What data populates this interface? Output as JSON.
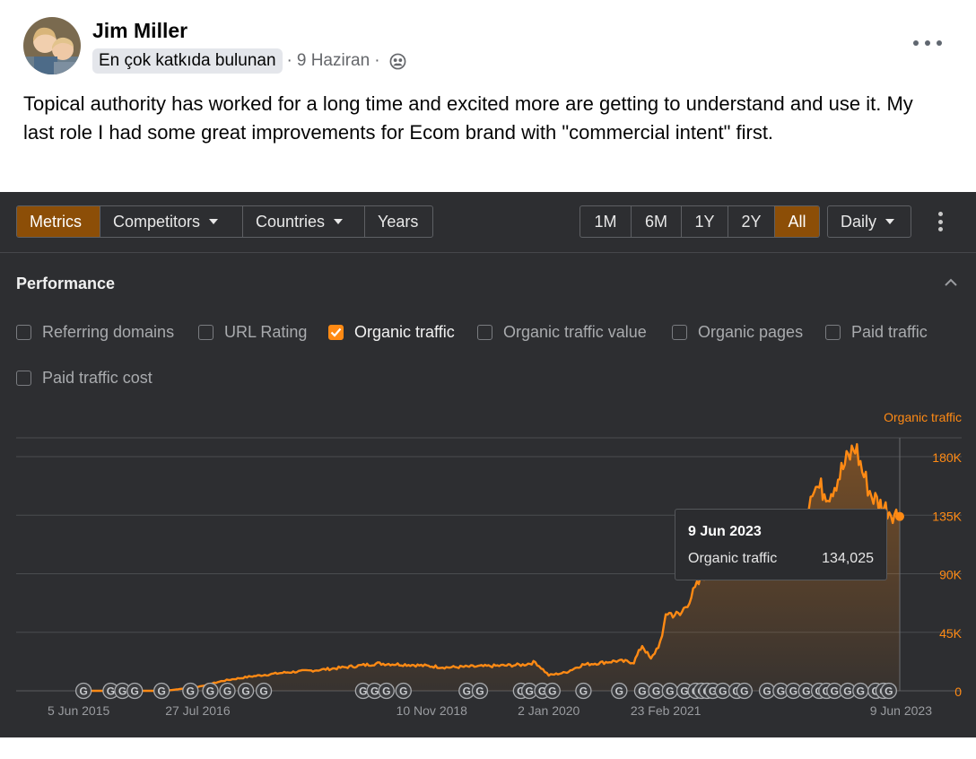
{
  "post": {
    "author": "Jim Miller",
    "badge": "En çok katkıda bulunan",
    "date": "9 Haziran",
    "privacy_icon": "friends-icon",
    "text": "Topical authority has worked for a long time and excited more are getting to understand and use it. My last role I had some great improvements for Ecom brand with \"commercial intent\" first."
  },
  "toolbar": {
    "tabs": [
      "Metrics",
      "Competitors",
      "Countries",
      "Years"
    ],
    "active_tab": "Metrics",
    "ranges": [
      "1M",
      "6M",
      "1Y",
      "2Y",
      "All"
    ],
    "active_range": "All",
    "granularity": "Daily"
  },
  "performance": {
    "title": "Performance",
    "checkboxes": [
      {
        "label": "Referring domains",
        "checked": false
      },
      {
        "label": "URL Rating",
        "checked": false
      },
      {
        "label": "Organic traffic",
        "checked": true
      },
      {
        "label": "Organic traffic value",
        "checked": false
      },
      {
        "label": "Organic pages",
        "checked": false
      },
      {
        "label": "Paid traffic",
        "checked": false
      },
      {
        "label": "Paid traffic cost",
        "checked": false
      }
    ]
  },
  "colors": {
    "accent": "#ff8a14",
    "active_button": "#8c4e07",
    "panel_bg": "#2d2e31"
  },
  "chart_data": {
    "type": "area",
    "series": [
      {
        "name": "Organic traffic",
        "points": [
          [
            "2015-06-05",
            0
          ],
          [
            "2016-04-01",
            0
          ],
          [
            "2016-07-27",
            3000
          ],
          [
            "2016-11-01",
            8000
          ],
          [
            "2017-02-01",
            11000
          ],
          [
            "2017-06-01",
            14000
          ],
          [
            "2017-10-01",
            16000
          ],
          [
            "2018-01-01",
            18000
          ],
          [
            "2018-05-01",
            21000
          ],
          [
            "2018-09-01",
            20000
          ],
          [
            "2019-01-01",
            18000
          ],
          [
            "2019-06-01",
            19000
          ],
          [
            "2019-10-01",
            20000
          ],
          [
            "2019-11-15",
            22000
          ],
          [
            "2020-01-02",
            12000
          ],
          [
            "2020-03-01",
            14000
          ],
          [
            "2020-05-01",
            20000
          ],
          [
            "2020-09-01",
            23000
          ],
          [
            "2020-11-01",
            22000
          ],
          [
            "2020-12-01",
            35000
          ],
          [
            "2021-01-01",
            24000
          ],
          [
            "2021-02-10",
            40000
          ],
          [
            "2021-02-23",
            60000
          ],
          [
            "2021-04-15",
            58000
          ],
          [
            "2021-06-01",
            75000
          ],
          [
            "2021-09-01",
            110000
          ],
          [
            "2021-10-01",
            130000
          ],
          [
            "2021-12-01",
            95000
          ],
          [
            "2022-01-15",
            98000
          ],
          [
            "2022-03-01",
            100000
          ],
          [
            "2022-06-01",
            120000
          ],
          [
            "2022-07-01",
            130000
          ],
          [
            "2022-08-01",
            158000
          ],
          [
            "2022-10-01",
            152000
          ],
          [
            "2022-12-01",
            176000
          ],
          [
            "2023-01-01",
            188000
          ],
          [
            "2023-02-01",
            165000
          ],
          [
            "2023-03-01",
            150000
          ],
          [
            "2023-04-01",
            143000
          ],
          [
            "2023-06-09",
            134025
          ]
        ]
      }
    ],
    "y_axis_title": "Organic traffic",
    "y_ticks": [
      "180K",
      "135K",
      "90K",
      "45K",
      "0"
    ],
    "y_values": [
      180000,
      135000,
      90000,
      45000,
      0
    ],
    "ylim": [
      0,
      180000
    ],
    "x_ticks": [
      "5 Jun 2015",
      "27 Jul 2016",
      "10 Nov 2018",
      "2 Jan 2020",
      "23 Feb 2021",
      "9 Jun 2023"
    ],
    "x_tick_dates": [
      "2015-06-05",
      "2016-07-27",
      "2018-11-10",
      "2020-01-02",
      "2021-02-23",
      "2023-06-09"
    ],
    "xlim": [
      "2015-06-05",
      "2023-06-09"
    ],
    "grid": true,
    "google_update_marker_icon": "google-update-icon",
    "google_update_dates": [
      "2015-06-15",
      "2015-09-20",
      "2015-11-01",
      "2015-12-15",
      "2016-03-20",
      "2016-07-01",
      "2016-09-10",
      "2016-11-10",
      "2017-01-15",
      "2017-03-20",
      "2018-03-10",
      "2018-04-20",
      "2018-06-01",
      "2018-08-01",
      "2019-03-15",
      "2019-05-01",
      "2019-09-25",
      "2019-10-25",
      "2019-12-10",
      "2020-01-15",
      "2020-05-05",
      "2020-09-10",
      "2020-12-01",
      "2021-01-20",
      "2021-03-10",
      "2021-05-01",
      "2021-06-10",
      "2021-07-01",
      "2021-07-20",
      "2021-08-10",
      "2021-09-15",
      "2021-11-03",
      "2021-12-01",
      "2022-02-20",
      "2022-04-10",
      "2022-05-25",
      "2022-07-10",
      "2022-08-25",
      "2022-09-20",
      "2022-10-19",
      "2022-12-05",
      "2023-01-20",
      "2023-03-15",
      "2023-04-12",
      "2023-05-01"
    ],
    "tooltip": {
      "date": "9 Jun 2023",
      "label": "Organic traffic",
      "value": "134,025"
    }
  }
}
